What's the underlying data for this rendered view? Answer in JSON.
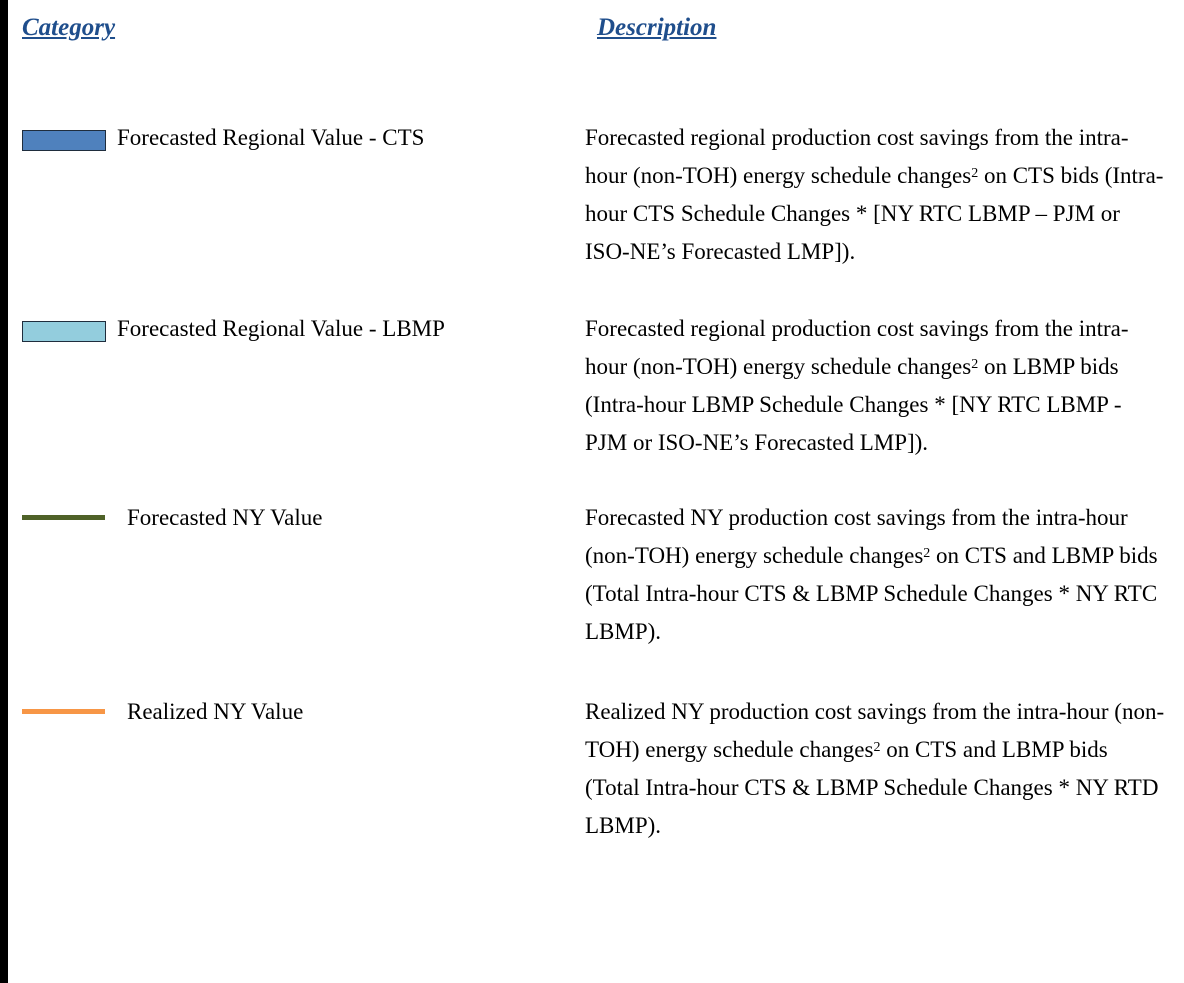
{
  "header": {
    "category": "Category",
    "description": "Description"
  },
  "rows": [
    {
      "category": "Forecasted Regional Value - CTS",
      "description_before": "Forecasted regional production cost savings from the intra-hour (non-TOH) energy schedule changes",
      "footnote": "2",
      "description_after": " on CTS bids (Intra-hour CTS Schedule Changes *  [NY RTC LBMP – PJM or ISO-NE’s Forecasted LMP])."
    },
    {
      "category": "Forecasted Regional Value - LBMP",
      "description_before": "Forecasted regional production cost savings from the intra-hour (non-TOH) energy schedule changes",
      "footnote": "2",
      "description_after": " on LBMP bids (Intra-hour LBMP Schedule Changes * [NY RTC LBMP - PJM or ISO-NE’s Forecasted LMP])."
    },
    {
      "category": "Forecasted NY Value",
      "description_before": "Forecasted NY production cost savings from the intra-hour (non-TOH) energy schedule changes",
      "footnote": "2",
      "description_after": " on CTS and LBMP bids (Total Intra-hour CTS & LBMP Schedule Changes *  NY RTC LBMP)."
    },
    {
      "category": "Realized NY Value",
      "description_before": "Realized NY production cost savings from the intra-hour (non-TOH) energy schedule changes",
      "footnote": "2",
      "description_after": " on CTS and LBMP bids (Total Intra-hour CTS & LBMP Schedule Changes * NY RTD LBMP)."
    }
  ]
}
